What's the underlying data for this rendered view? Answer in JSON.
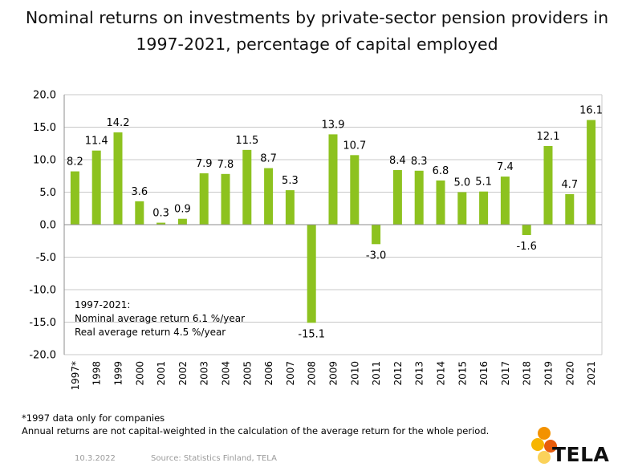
{
  "title_line1": "Nominal returns on investments by private-sector pension providers in",
  "title_line2": "1997-2021, percentage of capital employed",
  "chart_data": {
    "type": "bar",
    "title": "Nominal returns on investments by private-sector pension providers in 1997-2021, percentage of capital employed",
    "categories": [
      "1997*",
      "1998",
      "1999",
      "2000",
      "2001",
      "2002",
      "2003",
      "2004",
      "2005",
      "2006",
      "2007",
      "2008",
      "2009",
      "2010",
      "2011",
      "2012",
      "2013",
      "2014",
      "2015",
      "2016",
      "2017",
      "2018",
      "2019",
      "2020",
      "2021"
    ],
    "values": [
      8.2,
      11.4,
      14.2,
      3.6,
      0.3,
      0.9,
      7.9,
      7.8,
      11.5,
      8.7,
      5.3,
      -15.1,
      13.9,
      10.7,
      -3.0,
      8.4,
      8.3,
      6.8,
      5.0,
      5.1,
      7.4,
      -1.6,
      12.1,
      4.7,
      16.1
    ],
    "ylim": [
      -20,
      20
    ],
    "yticks": [
      "20.0",
      "15.0",
      "10.0",
      "5.0",
      "0.0",
      "-5.0",
      "-10.0",
      "-15.0",
      "-20.0"
    ],
    "grid": true,
    "bar_color": "#8dc21f",
    "xlabel": "",
    "ylabel": ""
  },
  "note": {
    "line1": "1997-2021:",
    "line2": "Nominal average return 6.1 %/year",
    "line3": "Real average return 4.5 %/year"
  },
  "footnote": {
    "line1": "*1997 data only for companies",
    "line2": "Annual returns are not capital-weighted in the calculation of the average return for the whole period."
  },
  "date": "10.3.2022",
  "source": "Source: Statistics Finland, TELA",
  "logo": {
    "text": "TELA",
    "dot_colors": [
      "#f39200",
      "#f7b500",
      "#e85d0c",
      "#fbd25a"
    ]
  }
}
